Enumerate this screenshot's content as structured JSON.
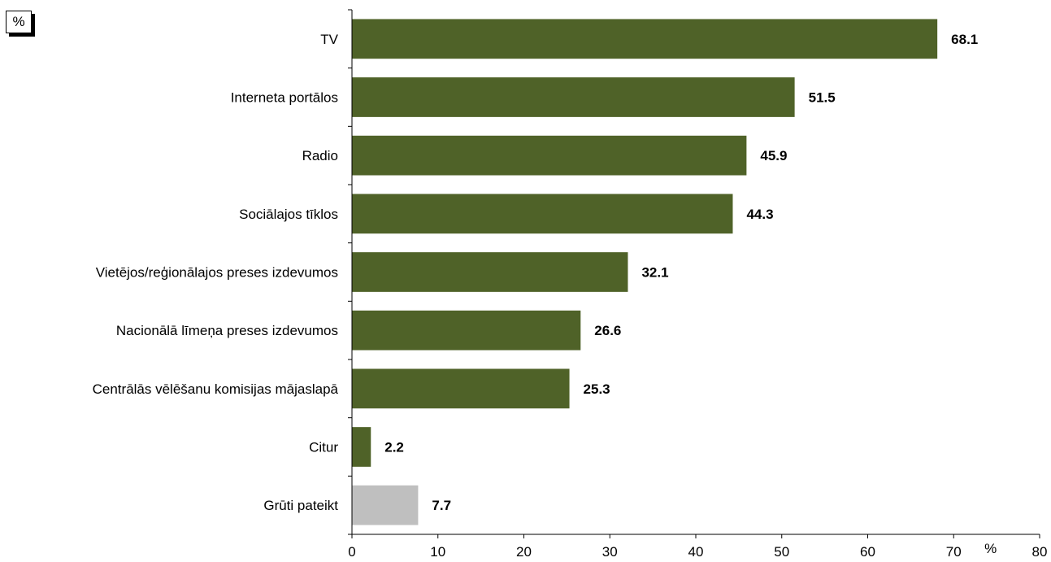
{
  "corner_label": "%",
  "chart_data": {
    "type": "bar",
    "orientation": "horizontal",
    "categories": [
      "TV",
      "Interneta portālos",
      "Radio",
      "Sociālajos tīklos",
      "Vietējos/reģionālajos preses izdevumos",
      "Nacionālā līmeņa preses izdevumos",
      "Centrālās vēlēšanu komisijas mājaslapā",
      "Citur",
      "Grūti pateikt"
    ],
    "values": [
      68.1,
      51.5,
      45.9,
      44.3,
      32.1,
      26.6,
      25.3,
      2.2,
      7.7
    ],
    "value_labels": [
      "68.1",
      "51.5",
      "45.9",
      "44.3",
      "32.1",
      "26.6",
      "25.3",
      "2.2",
      "7.7"
    ],
    "colors": [
      "#4f6228",
      "#4f6228",
      "#4f6228",
      "#4f6228",
      "#4f6228",
      "#4f6228",
      "#4f6228",
      "#4f6228",
      "#bfbfbf"
    ],
    "xlim": [
      0,
      80
    ],
    "xticks": [
      0,
      10,
      20,
      30,
      40,
      50,
      60,
      70,
      80
    ],
    "xlabel": "%",
    "grid": false
  }
}
